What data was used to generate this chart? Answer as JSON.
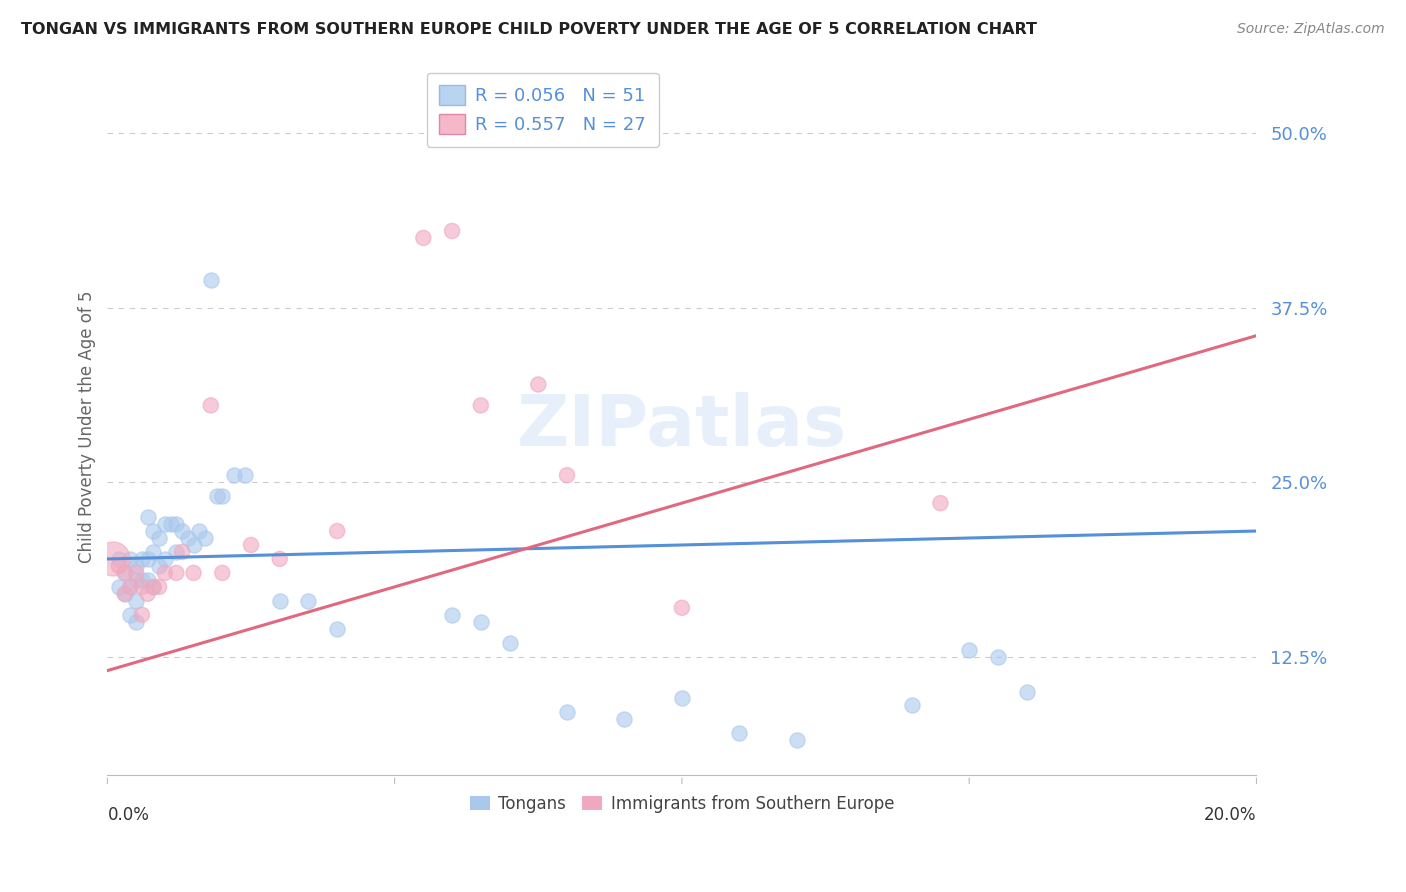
{
  "title": "TONGAN VS IMMIGRANTS FROM SOUTHERN EUROPE CHILD POVERTY UNDER THE AGE OF 5 CORRELATION CHART",
  "source": "Source: ZipAtlas.com",
  "ylabel": "Child Poverty Under the Age of 5",
  "ytick_labels": [
    "12.5%",
    "25.0%",
    "37.5%",
    "50.0%"
  ],
  "ytick_values": [
    0.125,
    0.25,
    0.375,
    0.5
  ],
  "xlim": [
    0.0,
    0.2
  ],
  "ylim": [
    0.04,
    0.54
  ],
  "legend_entry1": "R = 0.056   N = 51",
  "legend_entry2": "R = 0.557   N = 27",
  "legend_color1": "#b8d4f0",
  "legend_color2": "#f4b8c8",
  "scatter_color_blue": "#aac8ec",
  "scatter_color_pink": "#f0a8be",
  "line_color_blue": "#5590d8",
  "line_color_pink": "#e06880",
  "watermark": "ZIPatlas",
  "blue_line_x0": 0.0,
  "blue_line_y0": 0.195,
  "blue_line_x1": 0.2,
  "blue_line_y1": 0.215,
  "pink_line_x0": 0.0,
  "pink_line_y0": 0.115,
  "pink_line_x1": 0.2,
  "pink_line_y1": 0.355,
  "blue_x": [
    0.002,
    0.002,
    0.003,
    0.003,
    0.004,
    0.004,
    0.004,
    0.005,
    0.005,
    0.005,
    0.005,
    0.006,
    0.006,
    0.007,
    0.007,
    0.007,
    0.008,
    0.008,
    0.008,
    0.009,
    0.009,
    0.01,
    0.01,
    0.011,
    0.012,
    0.012,
    0.013,
    0.014,
    0.015,
    0.016,
    0.017,
    0.018,
    0.019,
    0.02,
    0.022,
    0.024,
    0.03,
    0.035,
    0.04,
    0.06,
    0.065,
    0.07,
    0.08,
    0.09,
    0.1,
    0.11,
    0.12,
    0.14,
    0.15,
    0.155,
    0.16
  ],
  "blue_y": [
    0.195,
    0.175,
    0.185,
    0.17,
    0.195,
    0.175,
    0.155,
    0.19,
    0.18,
    0.165,
    0.15,
    0.195,
    0.18,
    0.225,
    0.195,
    0.18,
    0.215,
    0.2,
    0.175,
    0.21,
    0.19,
    0.22,
    0.195,
    0.22,
    0.22,
    0.2,
    0.215,
    0.21,
    0.205,
    0.215,
    0.21,
    0.395,
    0.24,
    0.24,
    0.255,
    0.255,
    0.165,
    0.165,
    0.145,
    0.155,
    0.15,
    0.135,
    0.085,
    0.08,
    0.095,
    0.07,
    0.065,
    0.09,
    0.13,
    0.125,
    0.1
  ],
  "blue_size": 120,
  "pink_x": [
    0.001,
    0.002,
    0.003,
    0.003,
    0.004,
    0.005,
    0.006,
    0.006,
    0.007,
    0.008,
    0.009,
    0.01,
    0.012,
    0.013,
    0.015,
    0.018,
    0.02,
    0.025,
    0.03,
    0.04,
    0.055,
    0.06,
    0.065,
    0.075,
    0.08,
    0.1,
    0.145
  ],
  "pink_y": [
    0.195,
    0.19,
    0.185,
    0.17,
    0.175,
    0.185,
    0.175,
    0.155,
    0.17,
    0.175,
    0.175,
    0.185,
    0.185,
    0.2,
    0.185,
    0.305,
    0.185,
    0.205,
    0.195,
    0.215,
    0.425,
    0.43,
    0.305,
    0.32,
    0.255,
    0.16,
    0.235
  ],
  "pink_size_large": 600,
  "pink_size_small": 120,
  "pink_large_idx": 0
}
